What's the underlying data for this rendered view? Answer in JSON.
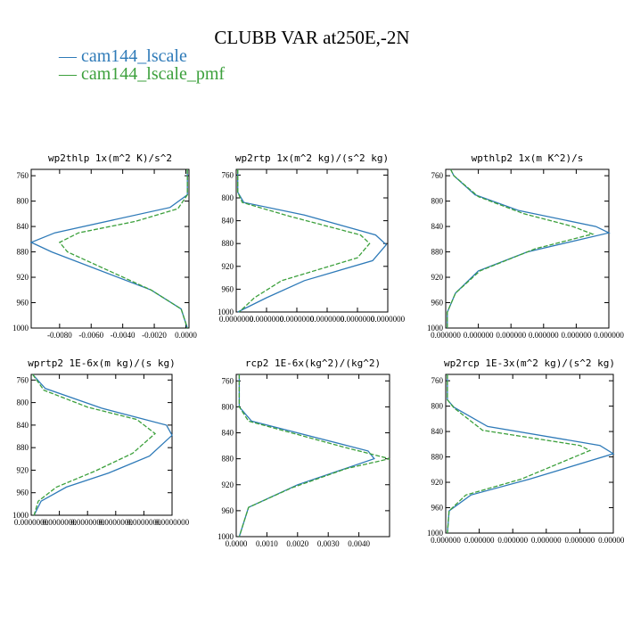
{
  "figure": {
    "title": "CLUBB VAR at250E,-2N",
    "legend": [
      {
        "label": "— cam144_lscale",
        "color": "#2e7ab8"
      },
      {
        "label": "— cam144_lscale_pmf",
        "color": "#3ca03c"
      }
    ]
  },
  "chart_data": [
    {
      "type": "line",
      "title": "wp2thlp   1x(m^2 K)/s^2",
      "ylim": [
        1000,
        750
      ],
      "yticks": [
        760,
        800,
        840,
        880,
        920,
        960,
        1000
      ],
      "xlim": [
        -0.0098,
        0.0002
      ],
      "xticks": [
        -0.008,
        -0.006,
        -0.004,
        -0.002,
        0.0
      ],
      "xtick_labels": [
        "-0.0080",
        "-0.0060",
        "-0.0040",
        "-0.0020",
        "0.0000"
      ],
      "series": [
        {
          "name": "cam144_lscale",
          "color": "#2e7ab8",
          "dash": false,
          "points": [
            [
              0.0001,
              750
            ],
            [
              0.0001,
              790
            ],
            [
              -0.001,
              810
            ],
            [
              -0.0083,
              850
            ],
            [
              -0.0098,
              865
            ],
            [
              -0.0085,
              880
            ],
            [
              -0.0022,
              940
            ],
            [
              -0.0003,
              970
            ],
            [
              0.0001,
              1000
            ]
          ]
        },
        {
          "name": "cam144_lscale_pmf",
          "color": "#3ca03c",
          "dash": true,
          "points": [
            [
              0.0001,
              750
            ],
            [
              0.0001,
              790
            ],
            [
              -0.0005,
              812
            ],
            [
              -0.0032,
              832
            ],
            [
              -0.0068,
              850
            ],
            [
              -0.008,
              865
            ],
            [
              -0.0075,
              880
            ],
            [
              -0.0022,
              940
            ],
            [
              -0.0003,
              970
            ],
            [
              0.0001,
              1000
            ]
          ]
        }
      ]
    },
    {
      "type": "line",
      "title": "wp2rtp   1x(m^2 kg)/(s^2 kg)",
      "ylim": [
        1000,
        750
      ],
      "yticks": [
        760,
        800,
        840,
        880,
        920,
        960,
        1000
      ],
      "xlim": [
        0,
        1.0
      ],
      "xticks": [
        0,
        0.2,
        0.4,
        0.6,
        0.8,
        1.0
      ],
      "xtick_labels": [
        "0.0000000",
        "0.0000000",
        "0.0000000",
        "0.0000000",
        "0.0000000",
        "0.0000000"
      ],
      "series": [
        {
          "name": "cam144_lscale",
          "color": "#2e7ab8",
          "dash": false,
          "points": [
            [
              0.01,
              750
            ],
            [
              0.01,
              790
            ],
            [
              0.05,
              808
            ],
            [
              0.45,
              830
            ],
            [
              0.92,
              865
            ],
            [
              0.99,
              882
            ],
            [
              0.9,
              910
            ],
            [
              0.45,
              945
            ],
            [
              0.2,
              975
            ],
            [
              0.01,
              1000
            ]
          ]
        },
        {
          "name": "cam144_lscale_pmf",
          "color": "#3ca03c",
          "dash": true,
          "points": [
            [
              0.01,
              750
            ],
            [
              0.01,
              790
            ],
            [
              0.04,
              808
            ],
            [
              0.35,
              832
            ],
            [
              0.82,
              865
            ],
            [
              0.88,
              880
            ],
            [
              0.8,
              905
            ],
            [
              0.3,
              945
            ],
            [
              0.12,
              975
            ],
            [
              0.02,
              1000
            ]
          ]
        }
      ]
    },
    {
      "type": "line",
      "title": "wpthlp2   1x(m K^2)/s",
      "ylim": [
        1000,
        750
      ],
      "yticks": [
        760,
        800,
        840,
        880,
        920,
        960,
        1000
      ],
      "xlim": [
        0,
        1.0
      ],
      "xticks": [
        0,
        0.2,
        0.4,
        0.6,
        0.8,
        1.0
      ],
      "xtick_labels": [
        "0.000000",
        "0.000000",
        "0.000000",
        "0.000000",
        "0.000000",
        "0.000000"
      ],
      "series": [
        {
          "name": "cam144_lscale",
          "color": "#2e7ab8",
          "dash": false,
          "points": [
            [
              0.03,
              750
            ],
            [
              0.05,
              760
            ],
            [
              0.18,
              790
            ],
            [
              0.45,
              815
            ],
            [
              0.92,
              840
            ],
            [
              1.0,
              850
            ],
            [
              0.5,
              880
            ],
            [
              0.2,
              910
            ],
            [
              0.06,
              945
            ],
            [
              0.01,
              975
            ],
            [
              0.01,
              1000
            ]
          ]
        },
        {
          "name": "cam144_lscale_pmf",
          "color": "#3ca03c",
          "dash": true,
          "points": [
            [
              0.03,
              750
            ],
            [
              0.05,
              760
            ],
            [
              0.2,
              793
            ],
            [
              0.48,
              820
            ],
            [
              0.78,
              840
            ],
            [
              0.9,
              852
            ],
            [
              0.55,
              875
            ],
            [
              0.21,
              910
            ],
            [
              0.06,
              945
            ],
            [
              0.01,
              975
            ],
            [
              0.01,
              1000
            ]
          ]
        }
      ]
    },
    {
      "type": "line",
      "title": "wprtp2   1E-6x(m kg)/(s kg)",
      "ylim": [
        1000,
        750
      ],
      "yticks": [
        760,
        800,
        840,
        880,
        920,
        960,
        1000
      ],
      "xlim": [
        0,
        1.0
      ],
      "xticks": [
        0,
        0.2,
        0.4,
        0.6,
        0.8,
        1.0
      ],
      "xtick_labels": [
        "0.0000000",
        "0.0000000",
        "0.0000000",
        "0.0000000",
        "0.0000000",
        "0.0000000"
      ],
      "series": [
        {
          "name": "cam144_lscale",
          "color": "#2e7ab8",
          "dash": false,
          "points": [
            [
              0.01,
              750
            ],
            [
              0.1,
              775
            ],
            [
              0.5,
              810
            ],
            [
              0.96,
              840
            ],
            [
              1.0,
              858
            ],
            [
              0.84,
              895
            ],
            [
              0.55,
              925
            ],
            [
              0.25,
              950
            ],
            [
              0.07,
              975
            ],
            [
              0.02,
              1000
            ]
          ]
        },
        {
          "name": "cam144_lscale_pmf",
          "color": "#3ca03c",
          "dash": true,
          "points": [
            [
              0.01,
              750
            ],
            [
              0.09,
              778
            ],
            [
              0.4,
              808
            ],
            [
              0.75,
              830
            ],
            [
              0.88,
              855
            ],
            [
              0.72,
              890
            ],
            [
              0.45,
              922
            ],
            [
              0.18,
              950
            ],
            [
              0.05,
              975
            ],
            [
              0.02,
              1000
            ]
          ]
        }
      ]
    },
    {
      "type": "line",
      "title": "rcp2   1E-6x(kg^2)/(kg^2)",
      "ylim": [
        1000,
        750
      ],
      "yticks": [
        760,
        800,
        840,
        880,
        920,
        960,
        1000
      ],
      "xlim": [
        0,
        0.005
      ],
      "xticks": [
        0,
        0.001,
        0.002,
        0.003,
        0.004
      ],
      "xtick_labels": [
        "0.0000",
        "0.0010",
        "0.0020",
        "0.0030",
        "0.0040"
      ],
      "series": [
        {
          "name": "cam144_lscale",
          "color": "#2e7ab8",
          "dash": false,
          "points": [
            [
              0.0001,
              750
            ],
            [
              0.0001,
              800
            ],
            [
              0.0005,
              822
            ],
            [
              0.0043,
              868
            ],
            [
              0.0045,
              880
            ],
            [
              0.002,
              920
            ],
            [
              0.0004,
              955
            ],
            [
              0.0001,
              1000
            ]
          ]
        },
        {
          "name": "cam144_lscale_pmf",
          "color": "#3ca03c",
          "dash": true,
          "points": [
            [
              0.0001,
              750
            ],
            [
              0.0001,
              800
            ],
            [
              0.0004,
              822
            ],
            [
              0.0035,
              862
            ],
            [
              0.005,
              880
            ],
            [
              0.0036,
              895
            ],
            [
              0.0018,
              925
            ],
            [
              0.0004,
              955
            ],
            [
              0.0001,
              1000
            ]
          ]
        }
      ]
    },
    {
      "type": "line",
      "title": "wp2rcp   1E-3x(m^2 kg)/(s^2 kg)",
      "ylim": [
        1000,
        750
      ],
      "yticks": [
        760,
        800,
        840,
        880,
        920,
        960,
        1000
      ],
      "xlim": [
        0,
        1.0
      ],
      "xticks": [
        0,
        0.2,
        0.4,
        0.6,
        0.8,
        1.0
      ],
      "xtick_labels": [
        "0.000000",
        "0.000000",
        "0.000000",
        "0.000000",
        "0.000000",
        "0.000000"
      ],
      "series": [
        {
          "name": "cam144_lscale",
          "color": "#2e7ab8",
          "dash": false,
          "points": [
            [
              0.01,
              750
            ],
            [
              0.01,
              790
            ],
            [
              0.05,
              802
            ],
            [
              0.25,
              832
            ],
            [
              0.92,
              862
            ],
            [
              1.0,
              875
            ],
            [
              0.5,
              915
            ],
            [
              0.15,
              940
            ],
            [
              0.02,
              965
            ],
            [
              0.01,
              1000
            ]
          ]
        },
        {
          "name": "cam144_lscale_pmf",
          "color": "#3ca03c",
          "dash": true,
          "points": [
            [
              0.01,
              750
            ],
            [
              0.01,
              790
            ],
            [
              0.05,
              803
            ],
            [
              0.22,
              838
            ],
            [
              0.8,
              862
            ],
            [
              0.86,
              870
            ],
            [
              0.45,
              915
            ],
            [
              0.12,
              940
            ],
            [
              0.02,
              965
            ],
            [
              0.01,
              1000
            ]
          ]
        }
      ]
    }
  ]
}
